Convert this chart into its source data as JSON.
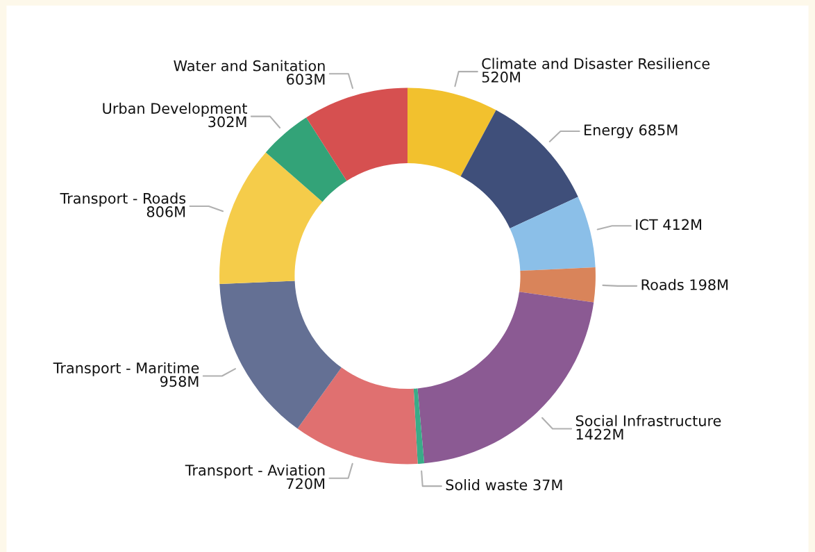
{
  "chart_data": {
    "type": "donut",
    "categories": [
      "Climate and Disaster Resilience",
      "Energy",
      "ICT",
      "Roads",
      "Social Infrastructure",
      "Solid waste",
      "Transport - Aviation",
      "Transport - Maritime",
      "Transport - Roads",
      "Urban Development",
      "Water and Sanitation"
    ],
    "values": [
      520,
      685,
      412,
      198,
      1422,
      37,
      720,
      958,
      806,
      302,
      603
    ],
    "value_labels": [
      "520M",
      "685M",
      "412M",
      "198M",
      "1422M",
      "37M",
      "720M",
      "958M",
      "806M",
      "302M",
      "603M"
    ],
    "colors": [
      "#f2c12e",
      "#3f4f7a",
      "#8bbfe8",
      "#d9845a",
      "#8b5a93",
      "#3aab88",
      "#e07070",
      "#647094",
      "#f5cc4a",
      "#33a378",
      "#d65050"
    ],
    "legend": false
  }
}
